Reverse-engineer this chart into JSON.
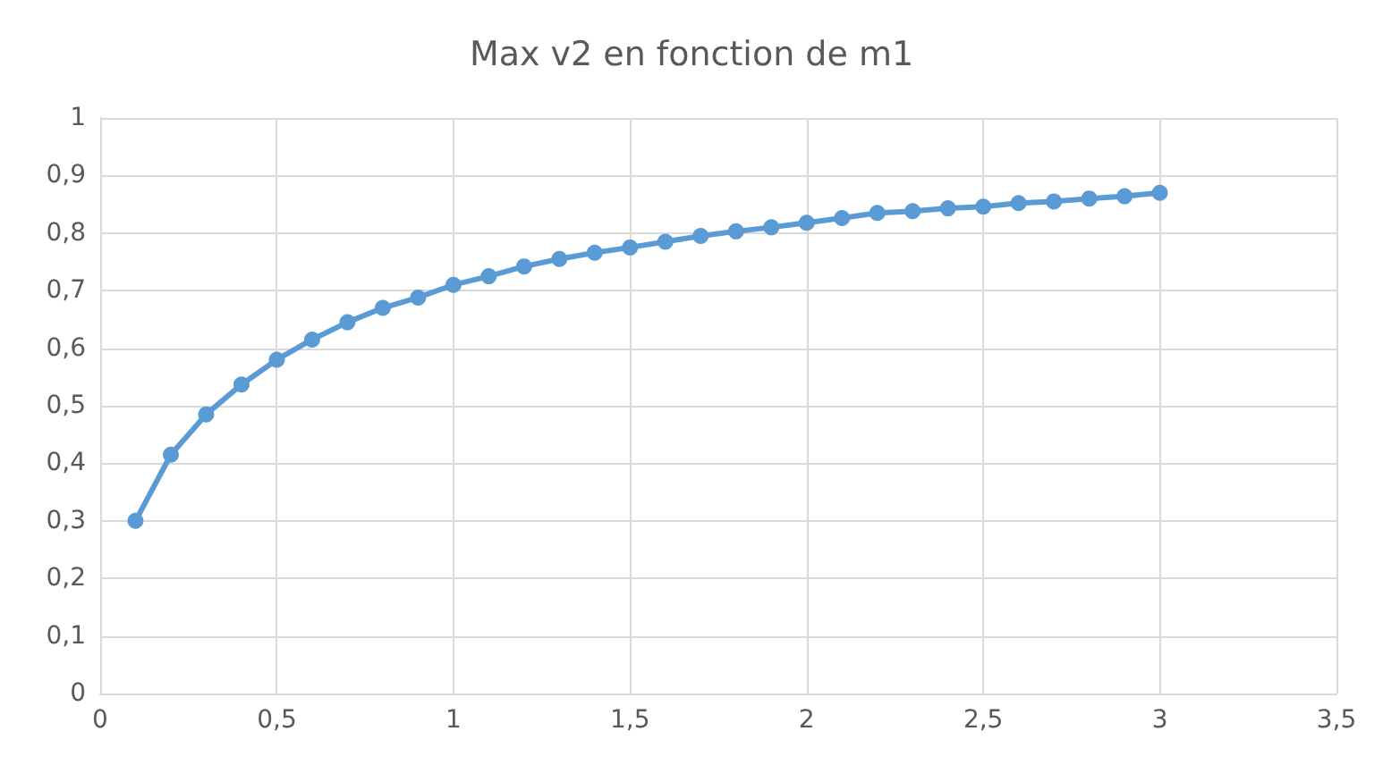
{
  "chart_data": {
    "type": "line",
    "title": "Max v2 en fonction de m1",
    "x": [
      0.1,
      0.2,
      0.3,
      0.4,
      0.5,
      0.6,
      0.7,
      0.8,
      0.9,
      1.0,
      1.1,
      1.2,
      1.3,
      1.4,
      1.5,
      1.6,
      1.7,
      1.8,
      1.9,
      2.0,
      2.1,
      2.2,
      2.3,
      2.4,
      2.5,
      2.6,
      2.7,
      2.8,
      2.9,
      3.0
    ],
    "series": [
      {
        "color": "#5b9bd5",
        "values": [
          0.3,
          0.415,
          0.485,
          0.537,
          0.58,
          0.615,
          0.645,
          0.67,
          0.688,
          0.71,
          0.725,
          0.742,
          0.755,
          0.766,
          0.775,
          0.785,
          0.795,
          0.803,
          0.81,
          0.818,
          0.826,
          0.835,
          0.838,
          0.843,
          0.846,
          0.852,
          0.855,
          0.86,
          0.864,
          0.87
        ]
      }
    ],
    "xlim": [
      0,
      3.5
    ],
    "xticks": [
      0,
      {
        "value": 0.5,
        "label": "0,5"
      },
      1,
      {
        "value": 1.5,
        "label": "1,5"
      },
      2,
      {
        "value": 2.5,
        "label": "2,5"
      },
      3,
      {
        "value": 3.5,
        "label": "3,5"
      }
    ],
    "ylim": [
      0,
      1
    ],
    "yticks": [
      0,
      {
        "value": 0.1,
        "label": "0,1"
      },
      {
        "value": 0.2,
        "label": "0,2"
      },
      {
        "value": 0.3,
        "label": "0,3"
      },
      {
        "value": 0.4,
        "label": "0,4"
      },
      {
        "value": 0.5,
        "label": "0,5"
      },
      {
        "value": 0.6,
        "label": "0,6"
      },
      {
        "value": 0.7,
        "label": "0,7"
      },
      {
        "value": 0.8,
        "label": "0,8"
      },
      {
        "value": 0.9,
        "label": "0,9"
      },
      1
    ],
    "grid": true,
    "marker": "circle",
    "line_style": "solid"
  }
}
